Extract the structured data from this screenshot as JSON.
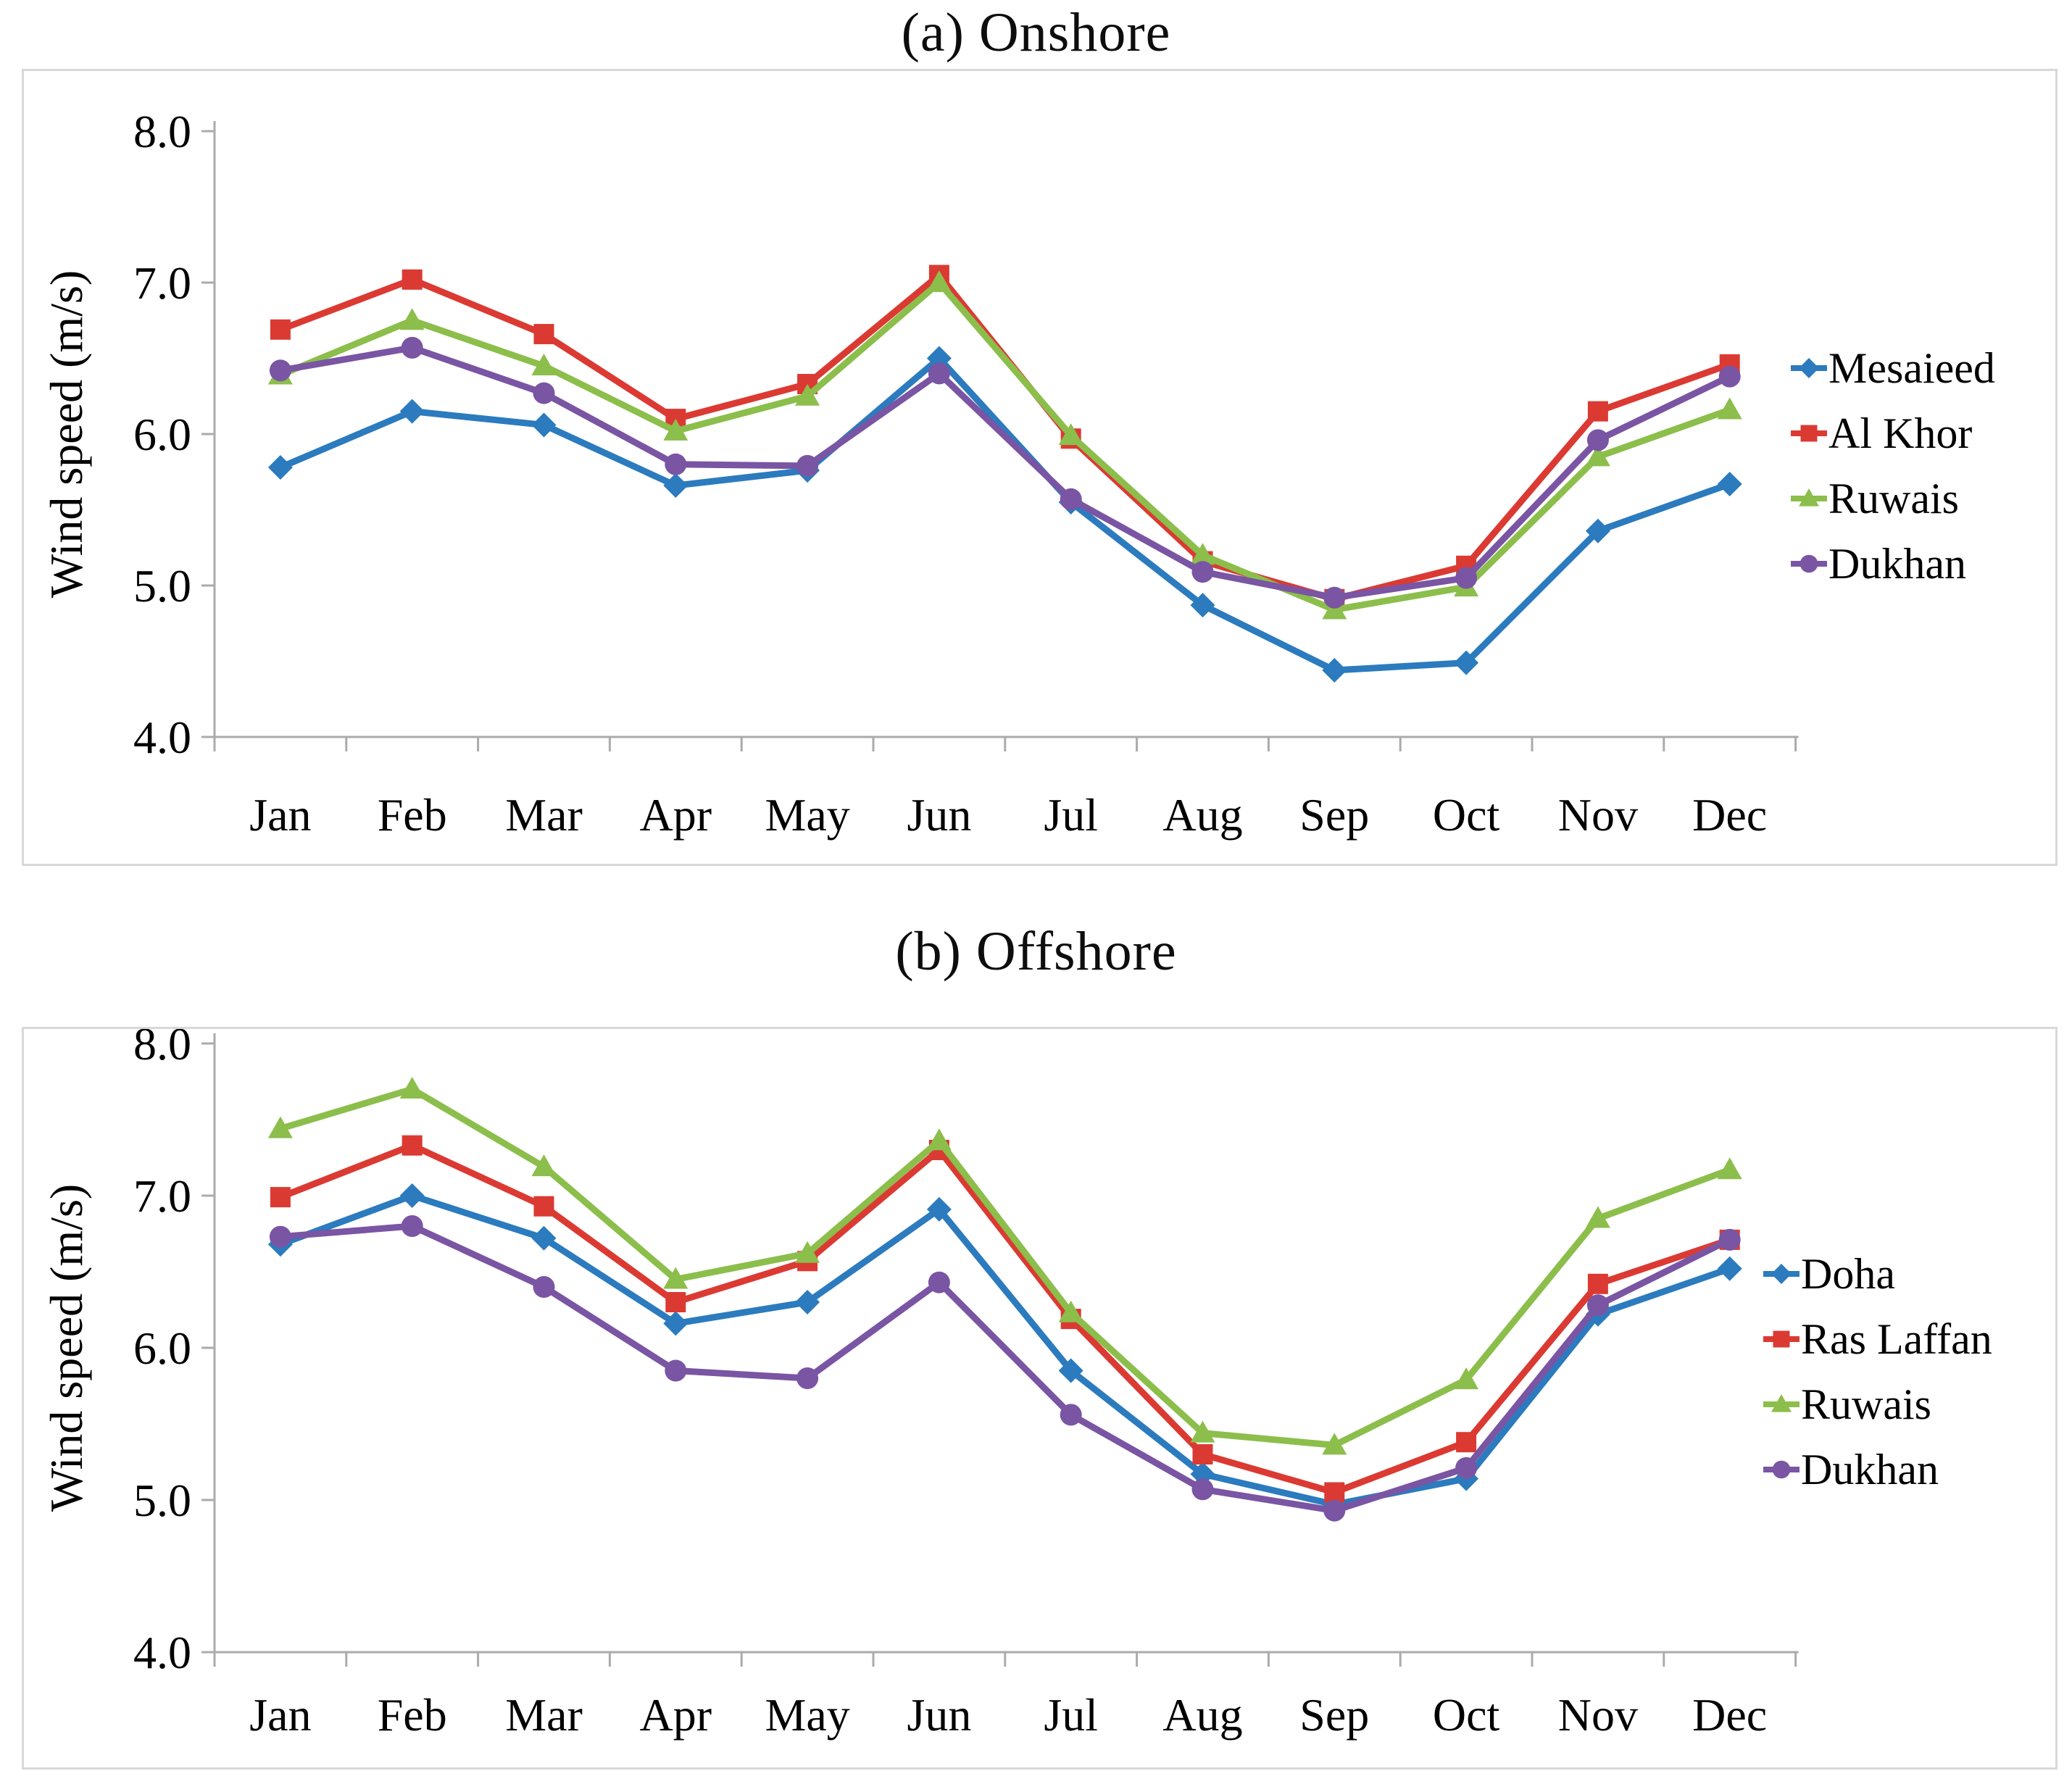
{
  "figure": {
    "background": "#ffffff",
    "panel_border_color": "#d8d8d8",
    "axis_color": "#ababab",
    "text_color": "#000000"
  },
  "chart_data": [
    {
      "type": "line",
      "title": "(a) Onshore",
      "ylabel": "Wind speed (m/s)",
      "xlabel": "",
      "ylim": [
        4.0,
        8.0
      ],
      "ytick_labels": [
        "8.0",
        "7.0",
        "6.0",
        "5.0",
        "4.0"
      ],
      "grid": false,
      "legend_position": "right-outside",
      "categories": [
        "Jan",
        "Feb",
        "Mar",
        "Apr",
        "May",
        "Jun",
        "Jul",
        "Aug",
        "Sep",
        "Oct",
        "Nov",
        "Dec"
      ],
      "series": [
        {
          "name": "Mesaieed",
          "marker": "diamond",
          "color": "#2b7bbe",
          "values": [
            5.78,
            6.15,
            6.06,
            5.66,
            5.76,
            6.5,
            5.55,
            4.87,
            4.44,
            4.49,
            5.36,
            5.67
          ]
        },
        {
          "name": "Al Khor",
          "marker": "square",
          "color": "#db3a33",
          "values": [
            6.69,
            7.02,
            6.66,
            6.1,
            6.33,
            7.05,
            5.97,
            5.16,
            4.91,
            5.13,
            6.15,
            6.46
          ]
        },
        {
          "name": "Ruwais",
          "marker": "triangle",
          "color": "#8cbe4b",
          "values": [
            6.39,
            6.75,
            6.45,
            6.02,
            6.25,
            7.0,
            5.99,
            5.2,
            4.84,
            4.99,
            5.85,
            6.16
          ]
        },
        {
          "name": "Dukhan",
          "marker": "circle",
          "color": "#7a55a3",
          "values": [
            6.42,
            6.57,
            6.27,
            5.8,
            5.79,
            6.4,
            5.57,
            5.09,
            4.92,
            5.05,
            5.96,
            6.38
          ]
        }
      ]
    },
    {
      "type": "line",
      "title": "(b) Offshore",
      "ylabel": "Wind speed (m/s)",
      "xlabel": "",
      "ylim": [
        4.0,
        8.0
      ],
      "ytick_labels": [
        "8.0",
        "7.0",
        "6.0",
        "5.0",
        "4.0"
      ],
      "grid": false,
      "legend_position": "right-outside",
      "categories": [
        "Jan",
        "Feb",
        "Mar",
        "Apr",
        "May",
        "Jun",
        "Jul",
        "Aug",
        "Sep",
        "Oct",
        "Nov",
        "Dec"
      ],
      "series": [
        {
          "name": "Doha",
          "marker": "diamond",
          "color": "#2b7bbe",
          "values": [
            6.68,
            7.0,
            6.72,
            6.16,
            6.3,
            6.91,
            5.85,
            5.17,
            4.97,
            5.14,
            6.22,
            6.52
          ]
        },
        {
          "name": "Ras Laffan",
          "marker": "square",
          "color": "#db3a33",
          "values": [
            6.99,
            7.33,
            6.93,
            6.3,
            6.57,
            7.3,
            6.19,
            5.3,
            5.05,
            5.38,
            6.42,
            6.71
          ]
        },
        {
          "name": "Ruwais",
          "marker": "triangle",
          "color": "#8cbe4b",
          "values": [
            7.44,
            7.7,
            7.19,
            6.45,
            6.62,
            7.36,
            6.23,
            5.44,
            5.36,
            5.79,
            6.85,
            7.17
          ]
        },
        {
          "name": "Dukhan",
          "marker": "circle",
          "color": "#7a55a3",
          "values": [
            6.73,
            6.8,
            6.4,
            5.85,
            5.8,
            6.43,
            5.56,
            5.07,
            4.93,
            5.21,
            6.28,
            6.71
          ]
        }
      ]
    }
  ]
}
